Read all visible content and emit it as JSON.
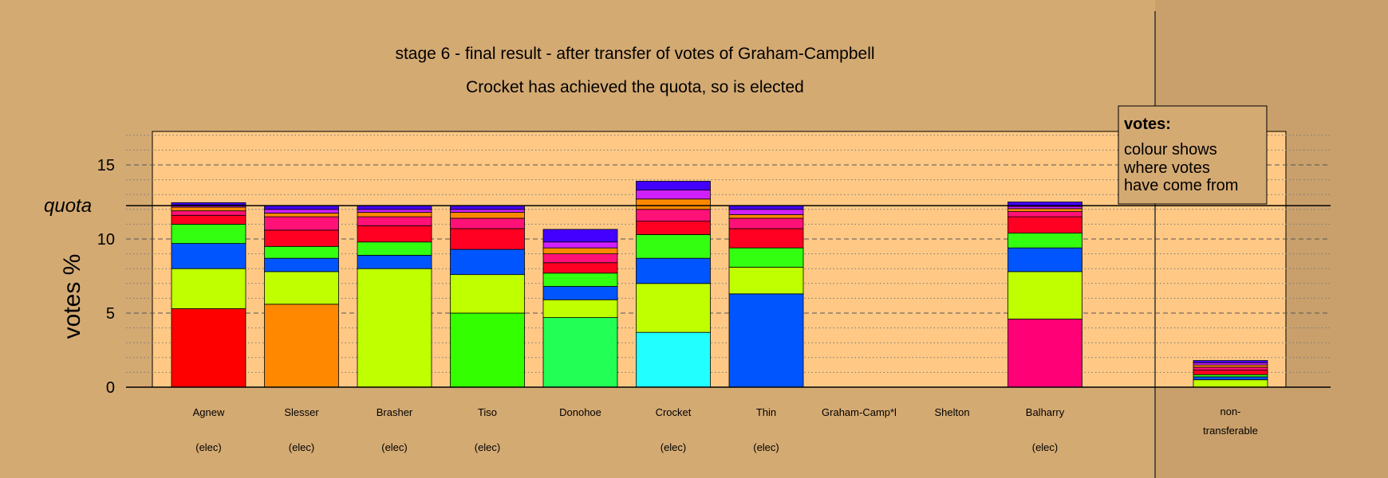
{
  "chart_data": {
    "type": "bar",
    "stacked": true,
    "title": "stage 6 - final result - after transfer of votes of Graham-Campbell",
    "subtitle": "Crocket has achieved the quota, so is elected",
    "ylabel": "votes %",
    "quota_label": "quota",
    "quota": 12.25,
    "ylim": [
      0,
      17.5
    ],
    "yticks": [
      0,
      5,
      10,
      15
    ],
    "grid": "dashed at major ticks, dotted at minor ticks",
    "legend": {
      "placement": "top-right",
      "title": "votes:",
      "lines": [
        "colour shows",
        "where votes",
        "have come from"
      ]
    },
    "candidates": [
      {
        "name": "Agnew",
        "status": "(elec)",
        "segments": [
          {
            "value": 5.3,
            "color": "#ff0000"
          },
          {
            "value": 2.7,
            "color": "#c0ff00"
          },
          {
            "value": 1.7,
            "color": "#0055ff"
          },
          {
            "value": 1.3,
            "color": "#33ff11"
          },
          {
            "value": 0.6,
            "color": "#ff0022"
          },
          {
            "value": 0.3,
            "color": "#ff1177"
          },
          {
            "value": 0.25,
            "color": "#ff8800"
          },
          {
            "value": 0.15,
            "color": "#d020ff"
          },
          {
            "value": 0.15,
            "color": "#4400ff"
          }
        ]
      },
      {
        "name": "Slesser",
        "status": "(elec)",
        "segments": [
          {
            "value": 5.6,
            "color": "#ff8800"
          },
          {
            "value": 2.2,
            "color": "#c0ff00"
          },
          {
            "value": 0.9,
            "color": "#0055ff"
          },
          {
            "value": 0.8,
            "color": "#33ff11"
          },
          {
            "value": 1.1,
            "color": "#ff0022"
          },
          {
            "value": 0.9,
            "color": "#ff1177"
          },
          {
            "value": 0.25,
            "color": "#ff8800"
          },
          {
            "value": 0.25,
            "color": "#d020ff"
          },
          {
            "value": 0.25,
            "color": "#4400ff"
          }
        ]
      },
      {
        "name": "Brasher",
        "status": "(elec)",
        "segments": [
          {
            "value": 8.0,
            "color": "#c0ff00"
          },
          {
            "value": 0.9,
            "color": "#0055ff"
          },
          {
            "value": 0.9,
            "color": "#33ff11"
          },
          {
            "value": 1.1,
            "color": "#ff0022"
          },
          {
            "value": 0.6,
            "color": "#ff1177"
          },
          {
            "value": 0.3,
            "color": "#ff8800"
          },
          {
            "value": 0.2,
            "color": "#d020ff"
          },
          {
            "value": 0.25,
            "color": "#4400ff"
          }
        ]
      },
      {
        "name": "Tiso",
        "status": "(elec)",
        "segments": [
          {
            "value": 5.0,
            "color": "#33ff00"
          },
          {
            "value": 2.6,
            "color": "#c0ff00"
          },
          {
            "value": 1.7,
            "color": "#0055ff"
          },
          {
            "value": 1.4,
            "color": "#ff0022"
          },
          {
            "value": 0.7,
            "color": "#ff1177"
          },
          {
            "value": 0.4,
            "color": "#ff8800"
          },
          {
            "value": 0.2,
            "color": "#d020ff"
          },
          {
            "value": 0.25,
            "color": "#4400ff"
          }
        ]
      },
      {
        "name": "Donohoe",
        "status": "",
        "segments": [
          {
            "value": 4.7,
            "color": "#22ff55"
          },
          {
            "value": 1.2,
            "color": "#c0ff00"
          },
          {
            "value": 0.9,
            "color": "#0055ff"
          },
          {
            "value": 0.9,
            "color": "#33ff11"
          },
          {
            "value": 0.7,
            "color": "#ff0022"
          },
          {
            "value": 0.6,
            "color": "#ff1177"
          },
          {
            "value": 0.4,
            "color": "#ff8800"
          },
          {
            "value": 0.4,
            "color": "#d020ff"
          },
          {
            "value": 0.85,
            "color": "#4400ff"
          }
        ]
      },
      {
        "name": "Crocket",
        "status": "(elec)",
        "segments": [
          {
            "value": 3.7,
            "color": "#22ffff"
          },
          {
            "value": 3.3,
            "color": "#c0ff00"
          },
          {
            "value": 1.7,
            "color": "#0055ff"
          },
          {
            "value": 1.6,
            "color": "#33ff11"
          },
          {
            "value": 0.9,
            "color": "#ff0022"
          },
          {
            "value": 0.8,
            "color": "#ff1177"
          },
          {
            "value": 0.7,
            "color": "#ff8800"
          },
          {
            "value": 0.6,
            "color": "#d020ff"
          },
          {
            "value": 0.6,
            "color": "#4400ff"
          }
        ]
      },
      {
        "name": "Thin",
        "status": "(elec)",
        "segments": [
          {
            "value": 6.3,
            "color": "#0055ff"
          },
          {
            "value": 1.8,
            "color": "#c0ff00"
          },
          {
            "value": 1.3,
            "color": "#33ff11"
          },
          {
            "value": 1.3,
            "color": "#ff0022"
          },
          {
            "value": 0.7,
            "color": "#ff1177"
          },
          {
            "value": 0.25,
            "color": "#ff8800"
          },
          {
            "value": 0.35,
            "color": "#d020ff"
          },
          {
            "value": 0.25,
            "color": "#4400ff"
          }
        ]
      },
      {
        "name": "Graham-Camp*l",
        "status": "",
        "segments": []
      },
      {
        "name": "Shelton",
        "status": "",
        "segments": []
      },
      {
        "name": "Balharry",
        "status": "(elec)",
        "segments": [
          {
            "value": 4.6,
            "color": "#ff0077"
          },
          {
            "value": 3.2,
            "color": "#c0ff00"
          },
          {
            "value": 1.6,
            "color": "#0055ff"
          },
          {
            "value": 1.0,
            "color": "#33ff11"
          },
          {
            "value": 1.1,
            "color": "#ff0022"
          },
          {
            "value": 0.35,
            "color": "#ff1177"
          },
          {
            "value": 0.2,
            "color": "#ff8800"
          },
          {
            "value": 0.15,
            "color": "#d020ff"
          },
          {
            "value": 0.3,
            "color": "#4400ff"
          }
        ]
      }
    ],
    "non_transferable": {
      "label_line1": "non-",
      "label_line2": "transferable",
      "segments": [
        {
          "value": 0.5,
          "color": "#c0ff00"
        },
        {
          "value": 0.2,
          "color": "#0055ff"
        },
        {
          "value": 0.15,
          "color": "#33ff11"
        },
        {
          "value": 0.3,
          "color": "#ff0022"
        },
        {
          "value": 0.2,
          "color": "#ff1177"
        },
        {
          "value": 0.15,
          "color": "#ff8800"
        },
        {
          "value": 0.15,
          "color": "#d020ff"
        },
        {
          "value": 0.15,
          "color": "#4400ff"
        }
      ]
    },
    "colors": {
      "background": "#d4aa73",
      "plot_area": "#ffc985",
      "nontransferable_band": "#c9a06c"
    }
  }
}
